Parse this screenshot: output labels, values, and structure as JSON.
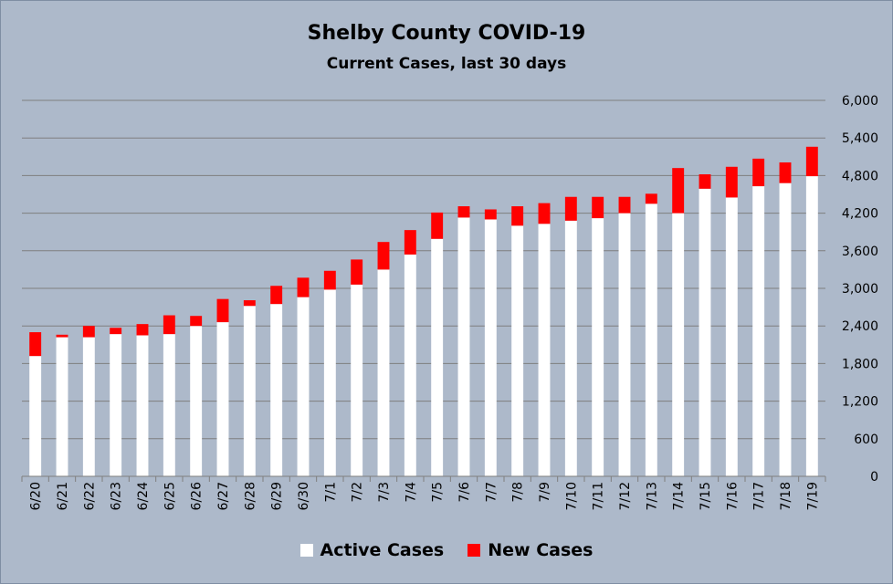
{
  "chart_data": {
    "type": "bar",
    "stacked": true,
    "title": "Shelby County COVID-19",
    "subtitle": "Current Cases, last 30 days",
    "categories": [
      "6/20",
      "6/21",
      "6/22",
      "6/23",
      "6/24",
      "6/25",
      "6/26",
      "6/27",
      "6/28",
      "6/29",
      "6/30",
      "7/1",
      "7/2",
      "7/3",
      "7/4",
      "7/5",
      "7/6",
      "7/7",
      "7/8",
      "7/9",
      "7/10",
      "7/11",
      "7/12",
      "7/13",
      "7/14",
      "7/15",
      "7/16",
      "7/17",
      "7/18",
      "7/19"
    ],
    "series": [
      {
        "name": "Active Cases",
        "color": "#ffffff",
        "values": [
          1920,
          2220,
          2220,
          2270,
          2250,
          2270,
          2400,
          2460,
          2720,
          2750,
          2860,
          2980,
          3060,
          3300,
          3540,
          3790,
          4130,
          4100,
          4000,
          4030,
          4080,
          4120,
          4200,
          4350,
          4200,
          4590,
          4450,
          4630,
          4680,
          4790
        ]
      },
      {
        "name": "New Cases",
        "color": "#ff0000",
        "values": [
          380,
          40,
          180,
          100,
          180,
          300,
          160,
          370,
          90,
          290,
          310,
          300,
          400,
          440,
          390,
          420,
          180,
          160,
          310,
          330,
          380,
          340,
          260,
          160,
          720,
          230,
          490,
          440,
          330,
          470
        ]
      }
    ],
    "ylim": [
      0,
      6000
    ],
    "yticks": [
      "0",
      "600",
      "1,200",
      "1,800",
      "2,400",
      "3,000",
      "3,600",
      "4,200",
      "4,800",
      "5,400",
      "6,000"
    ],
    "ytick_values": [
      0,
      600,
      1200,
      1800,
      2400,
      3000,
      3600,
      4200,
      4800,
      5400,
      6000
    ],
    "y_axis_side": "right",
    "grid": true,
    "legend_position": "bottom"
  }
}
